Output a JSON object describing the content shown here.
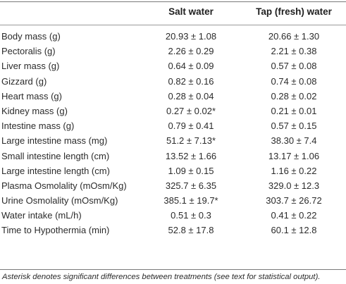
{
  "table": {
    "headers": [
      "",
      "Salt water",
      "Tap (fresh) water"
    ],
    "rows": [
      {
        "label": "Body mass (g)",
        "salt": "20.93 ± 1.08",
        "tap": "20.66 ± 1.30"
      },
      {
        "label": "Pectoralis (g)",
        "salt": "2.26 ± 0.29",
        "tap": "2.21 ± 0.38"
      },
      {
        "label": "Liver mass (g)",
        "salt": "0.64 ± 0.09",
        "tap": "0.57 ± 0.08"
      },
      {
        "label": "Gizzard (g)",
        "salt": "0.82 ± 0.16",
        "tap": "0.74 ± 0.08"
      },
      {
        "label": "Heart mass (g)",
        "salt": "0.28 ± 0.04",
        "tap": "0.28 ± 0.02"
      },
      {
        "label": "Kidney mass (g)",
        "salt": "0.27 ± 0.02*",
        "tap": "0.21 ± 0.01"
      },
      {
        "label": "Intestine mass (g)",
        "salt": "0.79 ± 0.41",
        "tap": "0.57 ± 0.15"
      },
      {
        "label": "Large intestine mass (mg)",
        "salt": "51.2 ± 7.13*",
        "tap": "38.30 ± 7.4"
      },
      {
        "label": "Small intestine length (cm)",
        "salt": "13.52 ± 1.66",
        "tap": "13.17 ± 1.06"
      },
      {
        "label": "Large intestine length (cm)",
        "salt": "1.09 ± 0.15",
        "tap": "1.16 ± 0.22"
      },
      {
        "label": "Plasma Osmolality (mOsm/Kg)",
        "salt": "325.7 ± 6.35",
        "tap": "329.0 ± 12.3"
      },
      {
        "label": "Urine Osmolality (mOsm/Kg)",
        "salt": "385.1 ± 19.7*",
        "tap": "303.7 ± 26.72"
      },
      {
        "label": "Water intake (mL/h)",
        "salt": "0.51 ± 0.3",
        "tap": "0.41 ± 0.22"
      },
      {
        "label": "Time to Hypothermia (min)",
        "salt": "52.8 ± 17.8",
        "tap": "60.1 ± 12.8"
      }
    ]
  },
  "footnote": "Asterisk denotes significant differences between treatments (see text for statistical output)."
}
